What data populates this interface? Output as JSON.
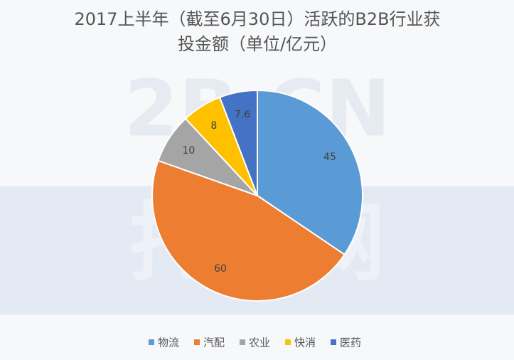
{
  "chart_data": {
    "type": "pie",
    "title": [
      "2017上半年（截至6月30日）活跃的B2B行业获",
      "投金额（单位/亿元）"
    ],
    "watermark": [
      "2B.CN",
      "托比网"
    ],
    "categories": [
      "物流",
      "汽配",
      "农业",
      "快消",
      "医药"
    ],
    "values": [
      45,
      60,
      10,
      8,
      7.6
    ],
    "colors": [
      "#5b9bd5",
      "#ed7d31",
      "#a5a5a5",
      "#ffc000",
      "#4472c4"
    ],
    "legend": "bottom"
  }
}
